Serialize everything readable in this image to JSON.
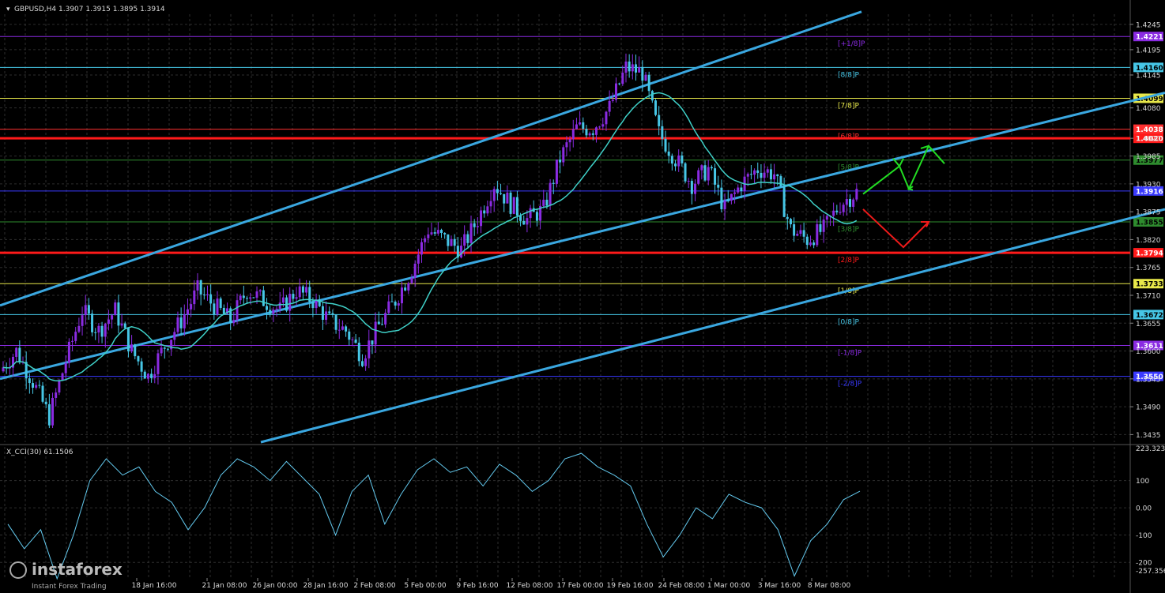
{
  "header": {
    "symbol_line": "GBPUSD,H4  1.3907 1.3915 1.3895 1.3914",
    "indicator_line": "X_CCI(30) 61.1506"
  },
  "watermark": {
    "brand": "instaforex",
    "tagline": "Instant Forex Trading"
  },
  "colors": {
    "background": "#000000",
    "grid": "#2e2e2e",
    "channel": "#3aa7e0",
    "bull_candle": "#8a2be2",
    "bear_candle": "#46c6e6",
    "moving_average": "#3fd0c8",
    "cci": "#63c9ee",
    "support_resistance": "#ff1a1a",
    "arrow_up": "#22dd22",
    "arrow_down": "#ee1a1a"
  },
  "chart_data": [
    {
      "type": "candlestick",
      "symbol": "GBPUSD",
      "timeframe": "H4",
      "ohlc_last": {
        "open": 1.3907,
        "high": 1.3915,
        "low": 1.3895,
        "close": 1.3914
      },
      "ylim": [
        1.342,
        1.4265
      ],
      "y_ticks": [
        1.4245,
        1.4195,
        1.4145,
        1.408,
        1.402,
        1.3985,
        1.393,
        1.3875,
        1.382,
        1.3765,
        1.371,
        1.3655,
        1.36,
        1.3545,
        1.349,
        1.3435
      ],
      "x_labels": [
        "18 Jan 16:00",
        "21 Jan 08:00",
        "26 Jan 00:00",
        "28 Jan 16:00",
        "2 Feb 08:00",
        "5 Feb 00:00",
        "9 Feb 16:00",
        "12 Feb 08:00",
        "17 Feb 00:00",
        "19 Feb 16:00",
        "24 Feb 08:00",
        "1 Mar 00:00",
        "3 Mar 16:00",
        "8 Mar 08:00"
      ],
      "close_path": [
        1.356,
        1.36,
        1.354,
        1.347,
        1.358,
        1.368,
        1.364,
        1.368,
        1.36,
        1.355,
        1.361,
        1.366,
        1.372,
        1.369,
        1.366,
        1.372,
        1.37,
        1.368,
        1.372,
        1.37,
        1.366,
        1.364,
        1.359,
        1.365,
        1.37,
        1.376,
        1.384,
        1.382,
        1.38,
        1.386,
        1.393,
        1.389,
        1.386,
        1.388,
        1.398,
        1.404,
        1.404,
        1.408,
        1.416,
        1.415,
        1.403,
        1.398,
        1.393,
        1.396,
        1.388,
        1.393,
        1.396,
        1.395,
        1.384,
        1.382,
        1.384,
        1.389,
        1.3914
      ],
      "levels": [
        {
          "label": "[+1/8]P",
          "price": 1.4221,
          "badge": "1.4221",
          "color": "#8a2be2"
        },
        {
          "label": "[8/8]P",
          "price": 1.416,
          "badge": "1.4160",
          "color": "#46c6e6"
        },
        {
          "label": "[7/8]P",
          "price": 1.4099,
          "badge": "1.4099",
          "color": "#e8e84a"
        },
        {
          "label": "[6/8]P",
          "price": 1.4038,
          "badge": "1.4038",
          "color": "#ff3030"
        },
        {
          "label": "",
          "price": 1.402,
          "badge": "1.4020",
          "color": "#ff1a1a"
        },
        {
          "label": "[5/8]P",
          "price": 1.3977,
          "badge": "1.3977",
          "color": "#2e8b2e"
        },
        {
          "label": "",
          "price": 1.3916,
          "badge": "1.3916",
          "color": "#3a3aff"
        },
        {
          "label": "[3/8]P",
          "price": 1.3855,
          "badge": "1.3855",
          "color": "#2e8b2e"
        },
        {
          "label": "[2/8]P",
          "price": 1.3794,
          "badge": "1.3794",
          "color": "#ff1a1a"
        },
        {
          "label": "[1/8]P",
          "price": 1.3733,
          "badge": "1.3733",
          "color": "#e8e84a"
        },
        {
          "label": "[0/8]P",
          "price": 1.3672,
          "badge": "1.3672",
          "color": "#46c6e6"
        },
        {
          "label": "[-1/8]P",
          "price": 1.3611,
          "badge": "1.3611",
          "color": "#8a2be2"
        },
        {
          "label": "[-2/8]P",
          "price": 1.355,
          "badge": "1.3550",
          "color": "#3a3aff"
        }
      ]
    },
    {
      "type": "line",
      "name": "X_CCI(30)",
      "value_last": 61.1506,
      "ylim": [
        -257.356,
        223.3239
      ],
      "y_ticks": [
        100,
        0,
        -100,
        -200
      ],
      "y_tick_labels": [
        "100",
        "0.00",
        "-100",
        "-200"
      ],
      "top_label": "223.3239",
      "bottom_label": "-257.356",
      "values": [
        -60,
        -150,
        -80,
        -260,
        -100,
        100,
        180,
        120,
        150,
        60,
        20,
        -80,
        0,
        120,
        180,
        150,
        100,
        170,
        110,
        50,
        -100,
        60,
        120,
        -60,
        50,
        140,
        180,
        130,
        150,
        80,
        160,
        120,
        60,
        100,
        180,
        200,
        150,
        120,
        80,
        -60,
        -180,
        -100,
        0,
        -40,
        50,
        20,
        0,
        -80,
        -250,
        -120,
        -60,
        30,
        61
      ]
    }
  ]
}
